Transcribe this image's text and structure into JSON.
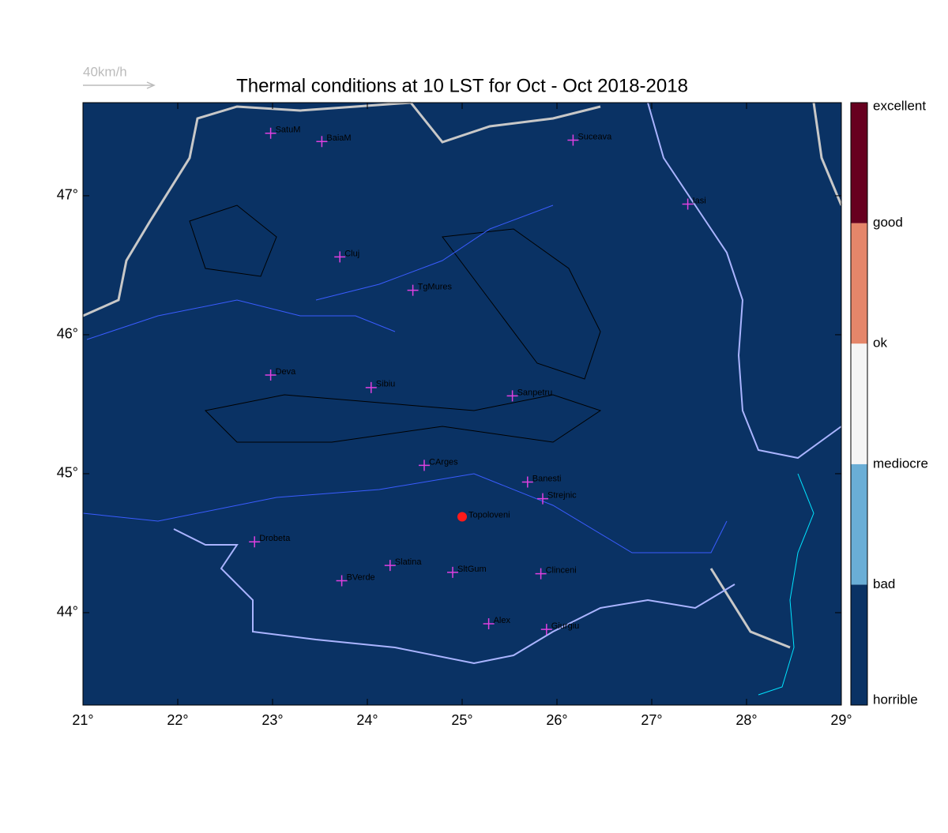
{
  "map": {
    "title": "Thermal conditions at 10 LST for Oct - Oct  2018-2018",
    "reference_vector": {
      "label": "40km/h"
    },
    "background": "#0a3264",
    "xlim": [
      21,
      29
    ],
    "ylim": [
      43.335,
      47.67
    ],
    "xticks": [
      {
        "value": 21,
        "label": "21°"
      },
      {
        "value": 22,
        "label": "22°"
      },
      {
        "value": 23,
        "label": "23°"
      },
      {
        "value": 24,
        "label": "24°"
      },
      {
        "value": 25,
        "label": "25°"
      },
      {
        "value": 26,
        "label": "26°"
      },
      {
        "value": 27,
        "label": "27°"
      },
      {
        "value": 28,
        "label": "28°"
      },
      {
        "value": 29,
        "label": "29°"
      }
    ],
    "yticks": [
      {
        "value": 44,
        "label": "44°"
      },
      {
        "value": 45,
        "label": "45°"
      },
      {
        "value": 46,
        "label": "46°"
      },
      {
        "value": 47,
        "label": "47°"
      }
    ],
    "cities": [
      {
        "name": "SatuM",
        "lon": 22.98,
        "lat": 47.45
      },
      {
        "name": "BaiaM",
        "lon": 23.52,
        "lat": 47.39
      },
      {
        "name": "Suceava",
        "lon": 26.17,
        "lat": 47.4
      },
      {
        "name": "Iasi",
        "lon": 27.38,
        "lat": 46.94
      },
      {
        "name": "Cluj",
        "lon": 23.71,
        "lat": 46.56
      },
      {
        "name": "TgMures",
        "lon": 24.48,
        "lat": 46.32
      },
      {
        "name": "Deva",
        "lon": 22.98,
        "lat": 45.71
      },
      {
        "name": "Sibiu",
        "lon": 24.04,
        "lat": 45.62
      },
      {
        "name": "Sanpetru",
        "lon": 25.53,
        "lat": 45.56
      },
      {
        "name": "CArges",
        "lon": 24.6,
        "lat": 45.06
      },
      {
        "name": "Banesti",
        "lon": 25.69,
        "lat": 44.94
      },
      {
        "name": "Strejnic",
        "lon": 25.85,
        "lat": 44.82
      },
      {
        "name": "Drobeta",
        "lon": 22.81,
        "lat": 44.51
      },
      {
        "name": "Slatina",
        "lon": 24.24,
        "lat": 44.34
      },
      {
        "name": "SltGum",
        "lon": 24.9,
        "lat": 44.29
      },
      {
        "name": "Clinceni",
        "lon": 25.83,
        "lat": 44.28
      },
      {
        "name": "BVerde",
        "lon": 23.73,
        "lat": 44.23
      },
      {
        "name": "Alex",
        "lon": 25.28,
        "lat": 43.92
      },
      {
        "name": "Giurgiu",
        "lon": 25.89,
        "lat": 43.88
      }
    ],
    "site": {
      "name": "Topoloveni",
      "lon": 25.0,
      "lat": 44.69,
      "color": "#ff1a1a"
    },
    "colorbar": {
      "labels": [
        "horrible",
        "bad",
        "mediocre",
        "ok",
        "good",
        "excellent"
      ],
      "colors": [
        "#0a3264",
        "#6aaed6",
        "#f5f5f5",
        "#e5866a",
        "#67001f"
      ]
    }
  }
}
